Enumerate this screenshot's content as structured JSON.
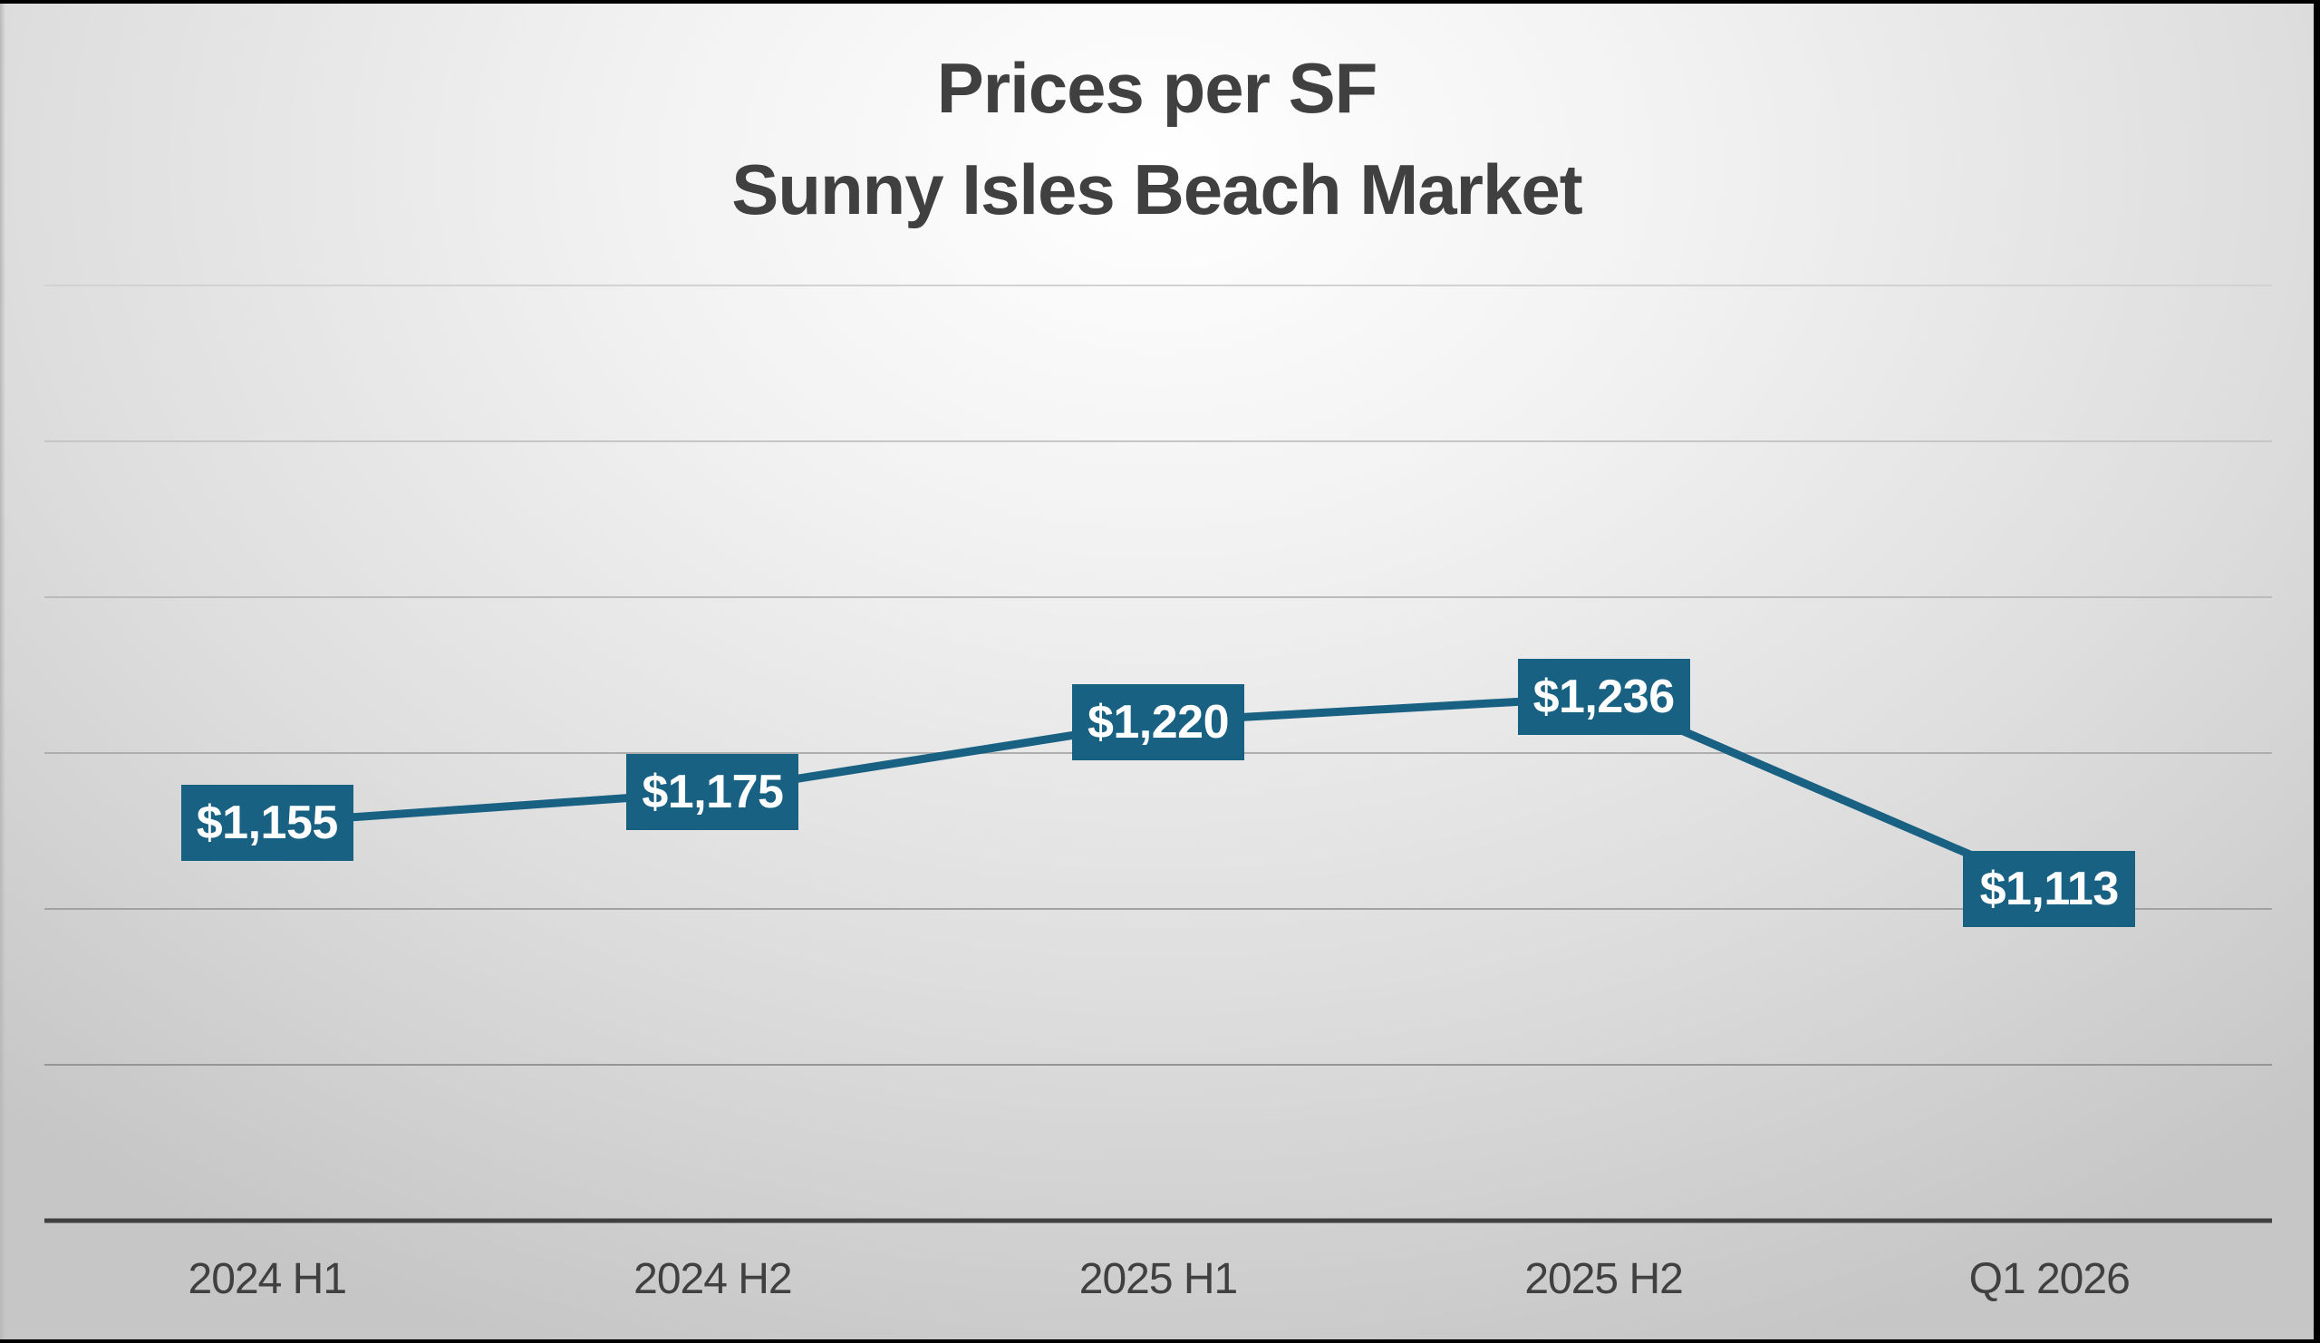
{
  "colors": {
    "series": "#186183",
    "label_bg": "#186183",
    "label_text": "#ffffff",
    "title": "#404040",
    "axis": "#404040",
    "gridline": "#c8c8c8"
  },
  "chart": {
    "title_line1": "Prices per SF",
    "title_line2": "Sunny Isles Beach Market",
    "x_labels": [
      "2024 H1",
      "2024 H2",
      "2025 H1",
      "2025 H2",
      "Q1 2026"
    ],
    "data_labels": [
      "$1,155",
      "$1,175",
      "$1,220",
      "$1,236",
      "$1,113"
    ]
  },
  "chart_data": {
    "type": "line",
    "title": "Prices per SF\nSunny Isles Beach Market",
    "categories": [
      "2024 H1",
      "2024 H2",
      "2025 H1",
      "2025 H2",
      "Q1 2026"
    ],
    "series": [
      {
        "name": "Price per SF",
        "values": [
          1155,
          1175,
          1220,
          1236,
          1113
        ]
      }
    ],
    "data_labels": [
      "$1,155",
      "$1,175",
      "$1,220",
      "$1,236",
      "$1,113"
    ],
    "xlabel": "",
    "ylabel": "",
    "ylim": [
      900,
      1500
    ],
    "y_gridlines": [
      1000,
      1100,
      1200,
      1300,
      1400,
      1500
    ],
    "y_tick_labels_visible": false,
    "grid": true,
    "legend": "none"
  }
}
